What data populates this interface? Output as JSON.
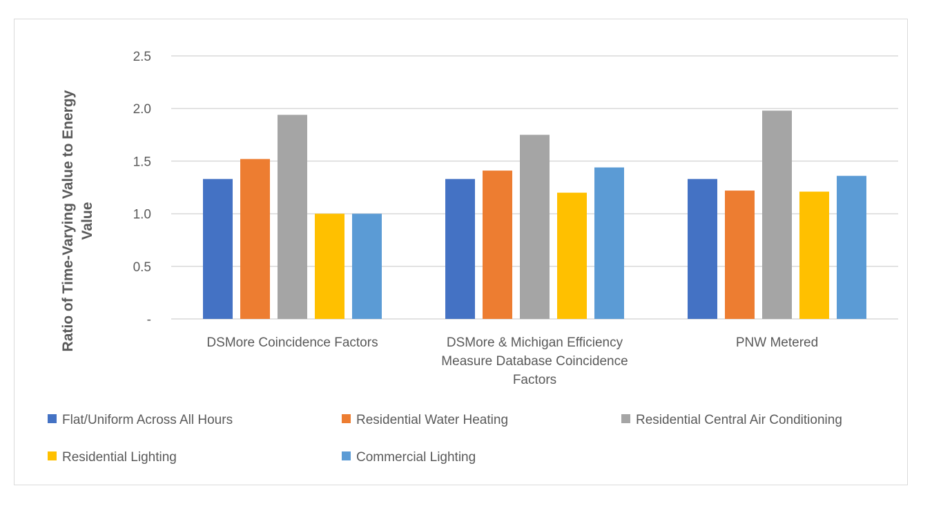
{
  "chart_data": {
    "type": "bar",
    "title": "",
    "ylabel": "Ratio of Time-Varying Value to Energy Value",
    "ylabel_lines": [
      "Ratio of Time-Varying Value to Energy",
      "Value"
    ],
    "xlabel": "",
    "ylim": [
      0,
      2.5
    ],
    "yticks": [
      {
        "value": 0,
        "label": "-"
      },
      {
        "value": 0.5,
        "label": "0.5"
      },
      {
        "value": 1.0,
        "label": "1.0"
      },
      {
        "value": 1.5,
        "label": "1.5"
      },
      {
        "value": 2.0,
        "label": "2.0"
      },
      {
        "value": 2.5,
        "label": "2.5"
      }
    ],
    "grid": true,
    "categories": [
      [
        "DSMore Coincidence Factors"
      ],
      [
        "DSMore & Michigan Efficiency",
        "Measure Database Coincidence",
        "Factors"
      ],
      [
        "PNW Metered"
      ]
    ],
    "series": [
      {
        "name": "Flat/Uniform Across All Hours",
        "color": "#4472c4",
        "values": [
          1.33,
          1.33,
          1.33
        ]
      },
      {
        "name": "Residential Water Heating",
        "color": "#ed7d31",
        "values": [
          1.52,
          1.41,
          1.22
        ]
      },
      {
        "name": "Residential Central Air Conditioning",
        "color": "#a5a5a5",
        "values": [
          1.94,
          1.75,
          1.98
        ]
      },
      {
        "name": "Residential Lighting",
        "color": "#ffc000",
        "values": [
          1.0,
          1.2,
          1.21
        ]
      },
      {
        "name": "Commercial Lighting",
        "color": "#5b9bd5",
        "values": [
          1.0,
          1.44,
          1.36
        ]
      }
    ],
    "legend_position": "bottom"
  }
}
